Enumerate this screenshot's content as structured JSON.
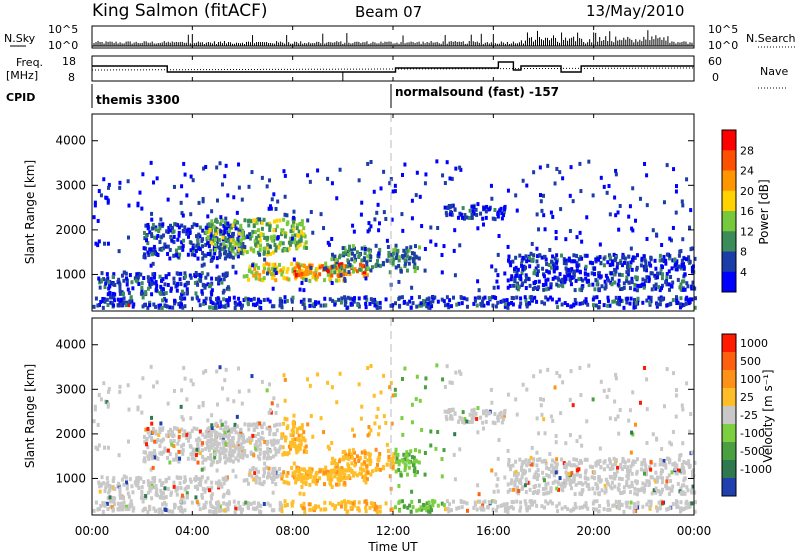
{
  "header": {
    "station": "King Salmon (fitACF)",
    "beam": "Beam 07",
    "date": "13/May/2010"
  },
  "nsky_panel": {
    "left_label": "N.Sky",
    "right_label": "N.Search",
    "left_ticks": [
      "10^5",
      "10^0"
    ],
    "right_ticks": [
      "10^5",
      "10^0"
    ]
  },
  "freq_panel": {
    "left_label_1": "Freq.",
    "left_label_2": "[MHz]",
    "right_label": "Nave",
    "left_ticks": [
      "18",
      "8"
    ],
    "right_ticks": [
      "60",
      "0"
    ]
  },
  "cpid": {
    "label": "CPID",
    "mode_1": "themis 3300",
    "mode_2": "normalsound (fast) -157"
  },
  "colors": {
    "scale": [
      "#0000ff",
      "#1c3ca8",
      "#3c8c5a",
      "#76c83c",
      "#ffd200",
      "#ff9600",
      "#ff5000",
      "#ff0000"
    ],
    "velocity": [
      "#2040b0",
      "#2e7a4e",
      "#4aa040",
      "#7ccf40",
      "#c8c8c8",
      "#ffbe28",
      "#ff9018",
      "#ff6010",
      "#ff1a00"
    ]
  },
  "chart_data": [
    {
      "type": "heatmap",
      "panel": "power",
      "ylabel": "Slant Range [km]",
      "ylim": [
        180,
        4600
      ],
      "yticks": [
        "1000",
        "2000",
        "3000",
        "4000"
      ],
      "colorbar_label": "Power [dB]",
      "colorbar_ticks": [
        "4",
        "8",
        "12",
        "16",
        "20",
        "24",
        "28"
      ],
      "x_ticks": [
        "00:00",
        "04:00",
        "08:00",
        "12:00",
        "16:00",
        "20:00",
        "00:00"
      ],
      "xlim_hours": [
        0,
        24
      ],
      "regions": [
        {
          "t": [
            0.2,
            5.5
          ],
          "r": [
            500,
            1000
          ],
          "level": 1
        },
        {
          "t": [
            2.0,
            6.0
          ],
          "r": [
            1300,
            2100
          ],
          "level": 1
        },
        {
          "t": [
            4.5,
            8.5
          ],
          "r": [
            1400,
            2200
          ],
          "level": 3
        },
        {
          "t": [
            6.0,
            10.0
          ],
          "r": [
            800,
            1200
          ],
          "level": 4
        },
        {
          "t": [
            8.0,
            11.0
          ],
          "r": [
            900,
            1200
          ],
          "level": 6
        },
        {
          "t": [
            9.5,
            13.0
          ],
          "r": [
            1000,
            1600
          ],
          "level": 2
        },
        {
          "t": [
            14.0,
            16.5
          ],
          "r": [
            2200,
            2500
          ],
          "level": 1
        },
        {
          "t": [
            16.5,
            24.0
          ],
          "r": [
            600,
            1400
          ],
          "level": 1
        },
        {
          "t": [
            0.8,
            1.6
          ],
          "r": [
            250,
            320
          ],
          "level": 7
        }
      ]
    },
    {
      "type": "heatmap",
      "panel": "velocity",
      "ylabel": "Slant Range [km]",
      "ylim": [
        180,
        4600
      ],
      "yticks": [
        "1000",
        "2000",
        "3000",
        "4000"
      ],
      "colorbar_label": "Velocity [m s⁻¹]",
      "colorbar_ticks": [
        "1000",
        "500",
        "100",
        "25",
        "-25",
        "-100",
        "-500",
        "-1000"
      ],
      "x_ticks": [
        "00:00",
        "04:00",
        "08:00",
        "12:00",
        "16:00",
        "20:00",
        "00:00"
      ],
      "xlabel": "Time UT",
      "xlim_hours": [
        0,
        24
      ]
    }
  ]
}
